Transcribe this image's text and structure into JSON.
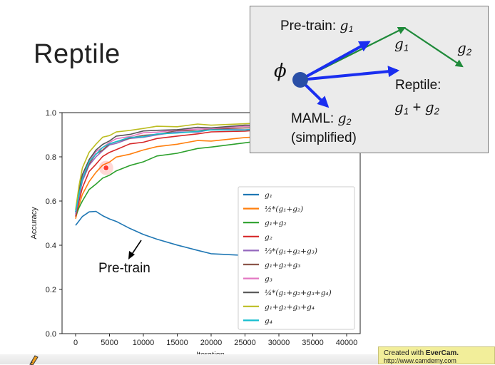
{
  "slide": {
    "title": "Reptile"
  },
  "chart_data": {
    "type": "line",
    "title": "",
    "xlabel": "Iteration",
    "ylabel": "Accuracy",
    "xlim": [
      -2000,
      42000
    ],
    "ylim": [
      0.0,
      1.0
    ],
    "x_ticks": [
      0,
      5000,
      10000,
      15000,
      20000,
      25000,
      30000,
      35000,
      40000
    ],
    "y_ticks": [
      "0.0",
      "0.2",
      "0.4",
      "0.6",
      "0.8",
      "1.0"
    ],
    "x": [
      0,
      500,
      1000,
      2000,
      3000,
      4000,
      5000,
      6000,
      8000,
      10000,
      12000,
      15000,
      18000,
      20000,
      25000,
      30000,
      35000,
      40000
    ],
    "legend_position": "center-right",
    "series": [
      {
        "name": "g₁",
        "color": "#1f77b4",
        "values": [
          0.49,
          0.51,
          0.53,
          0.555,
          0.55,
          0.535,
          0.52,
          0.505,
          0.48,
          0.445,
          0.43,
          0.4,
          0.375,
          0.365,
          0.35,
          0.343,
          0.338,
          0.335
        ]
      },
      {
        "name": "½*(g₁+g₂)",
        "color": "#ff7f0e",
        "values": [
          0.52,
          0.58,
          0.63,
          0.69,
          0.73,
          0.76,
          0.78,
          0.795,
          0.815,
          0.83,
          0.845,
          0.86,
          0.87,
          0.875,
          0.885,
          0.895,
          0.9,
          0.905
        ]
      },
      {
        "name": "g₁+g₂",
        "color": "#2ca02c",
        "values": [
          0.53,
          0.57,
          0.6,
          0.65,
          0.68,
          0.7,
          0.72,
          0.735,
          0.76,
          0.78,
          0.8,
          0.82,
          0.835,
          0.845,
          0.865,
          0.88,
          0.89,
          0.895
        ]
      },
      {
        "name": "g₂",
        "color": "#d62728",
        "values": [
          0.53,
          0.6,
          0.66,
          0.73,
          0.77,
          0.8,
          0.82,
          0.835,
          0.855,
          0.87,
          0.88,
          0.895,
          0.905,
          0.91,
          0.92,
          0.925,
          0.93,
          0.93
        ]
      },
      {
        "name": "⅓*(g₁+g₂+g₃)",
        "color": "#9467bd",
        "values": [
          0.54,
          0.62,
          0.69,
          0.76,
          0.8,
          0.83,
          0.85,
          0.865,
          0.88,
          0.89,
          0.9,
          0.91,
          0.915,
          0.92,
          0.925,
          0.93,
          0.935,
          0.935
        ]
      },
      {
        "name": "g₁+g₂+g₃",
        "color": "#8c564b",
        "values": [
          0.55,
          0.63,
          0.7,
          0.77,
          0.81,
          0.835,
          0.855,
          0.87,
          0.885,
          0.895,
          0.905,
          0.915,
          0.92,
          0.925,
          0.93,
          0.935,
          0.94,
          0.94
        ]
      },
      {
        "name": "g₃",
        "color": "#e377c2",
        "values": [
          0.55,
          0.64,
          0.71,
          0.78,
          0.82,
          0.845,
          0.865,
          0.88,
          0.895,
          0.905,
          0.915,
          0.92,
          0.925,
          0.93,
          0.935,
          0.94,
          0.94,
          0.945
        ]
      },
      {
        "name": "¼*(g₁+g₂+g₃+g₄)",
        "color": "#555555",
        "values": [
          0.55,
          0.65,
          0.72,
          0.79,
          0.83,
          0.855,
          0.875,
          0.89,
          0.905,
          0.915,
          0.92,
          0.925,
          0.93,
          0.935,
          0.94,
          0.945,
          0.945,
          0.95
        ]
      },
      {
        "name": "g₁+g₂+g₃+g₄",
        "color": "#bcbd22",
        "values": [
          0.56,
          0.67,
          0.75,
          0.82,
          0.86,
          0.885,
          0.9,
          0.91,
          0.92,
          0.93,
          0.935,
          0.94,
          0.945,
          0.945,
          0.95,
          0.955,
          0.955,
          0.955
        ]
      },
      {
        "name": "g₄",
        "color": "#17becf",
        "values": [
          0.55,
          0.63,
          0.7,
          0.775,
          0.815,
          0.84,
          0.86,
          0.87,
          0.885,
          0.895,
          0.9,
          0.91,
          0.915,
          0.92,
          0.925,
          0.93,
          0.935,
          0.935
        ]
      }
    ],
    "annotations": [
      {
        "text": "Pre-train",
        "target_series": "g₁"
      }
    ],
    "marker": {
      "x": 4500,
      "y": 0.75,
      "color": "#ff3b30"
    }
  },
  "diagram": {
    "pretrain_label": "Pre-train:",
    "pretrain_symbol": "g",
    "pretrain_sub": "1",
    "phi_symbol": "ϕ",
    "g1_symbol": "g",
    "g1_sub": "1",
    "g2_symbol": "g",
    "g2_sub": "2",
    "reptile_label": "Reptile:",
    "reptile_expr_a": "g",
    "reptile_expr_a_sub": "1",
    "reptile_plus": " + ",
    "reptile_expr_b": "g",
    "reptile_expr_b_sub": "2",
    "maml_label": "MAML:",
    "maml_symbol": "g",
    "maml_sub": "2",
    "maml_note": "(simplified)",
    "colors": {
      "blue": "#1a2ef0",
      "green": "#1f8a3a",
      "dot": "#2a4fa6"
    }
  },
  "watermark": {
    "prefix": "Created with",
    "brand": "EverCam.",
    "url": "http://www.camdemy.com"
  }
}
